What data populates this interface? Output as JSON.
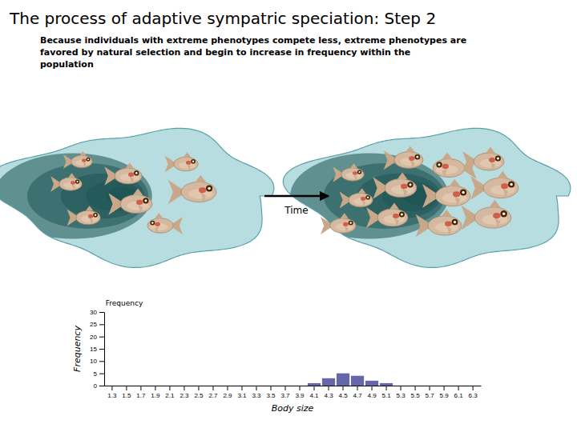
{
  "chart_data": {
    "type": "bar",
    "title": "The process of adaptive sympatric speciation: Step 2",
    "subtitle": "Because individuals with extreme phenotypes compete less, extreme phenotypes are\nfavored by natural selection and begin to increase in frequency within the\npopulation",
    "annotations": [
      "Time",
      "Frequency"
    ],
    "categories": [
      "1.3",
      "1.5",
      "1.7",
      "1.9",
      "2.1",
      "2.3",
      "2.5",
      "2.7",
      "2.9",
      "3.1",
      "3.3",
      "3.5",
      "3.7",
      "3.9",
      "4.1",
      "4.3",
      "4.5",
      "4.7",
      "4.9",
      "5.1",
      "5.3",
      "5.5",
      "5.7",
      "5.9",
      "6.1",
      "6.3"
    ],
    "values": [
      0,
      0,
      0,
      0,
      0,
      0,
      0,
      0,
      0,
      0,
      0,
      0,
      0,
      0,
      1,
      3,
      5,
      4,
      2,
      1,
      0,
      0,
      0,
      0,
      0,
      0
    ],
    "color": "#6666aa",
    "x_label": "Body size",
    "y_label": "Frequency",
    "ylim": [
      0,
      30
    ],
    "yticks": [
      0,
      5,
      10,
      15,
      20,
      25,
      30
    ],
    "grid": false
  }
}
